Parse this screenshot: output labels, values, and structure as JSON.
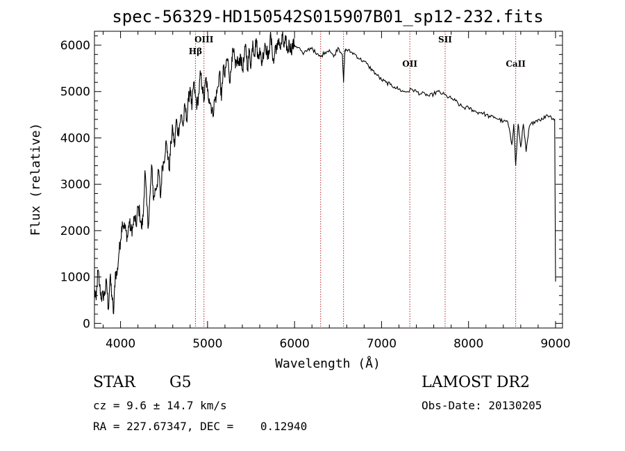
{
  "chart_data": {
    "type": "line",
    "title": "spec-56329-HD150542S015907B01_sp12-232.fits",
    "xlabel": "Wavelength (Å)",
    "ylabel": "Flux (relative)",
    "xlim": [
      3700,
      9080
    ],
    "ylim": [
      -100,
      6300
    ],
    "x_ticks": [
      4000,
      5000,
      6000,
      7000,
      8000,
      9000
    ],
    "y_ticks": [
      0,
      1000,
      2000,
      3000,
      4000,
      5000,
      6000
    ],
    "grid": false,
    "line_color": "#000000",
    "marker_color": "#b22222",
    "series": [
      {
        "x": [
          3700,
          3720,
          3740,
          3760,
          3780,
          3800,
          3820,
          3840,
          3860,
          3880,
          3900,
          3920,
          3940,
          3960,
          3980,
          4000,
          4020,
          4040,
          4060,
          4080,
          4100,
          4120,
          4140,
          4160,
          4180,
          4200,
          4220,
          4240,
          4260,
          4280,
          4300,
          4320,
          4340,
          4360,
          4380,
          4400,
          4420,
          4440,
          4460,
          4480,
          4500,
          4520,
          4540,
          4560,
          4580,
          4600,
          4620,
          4640,
          4660,
          4680,
          4700,
          4720,
          4740,
          4760,
          4780,
          4800,
          4820,
          4840,
          4860,
          4880,
          4900,
          4920,
          4940,
          4960,
          4980,
          5000,
          5020,
          5040,
          5060,
          5080,
          5100,
          5120,
          5140,
          5160,
          5180,
          5200,
          5220,
          5240,
          5260,
          5280,
          5300,
          5320,
          5340,
          5360,
          5380,
          5400,
          5420,
          5440,
          5460,
          5480,
          5500,
          5520,
          5540,
          5560,
          5580,
          5600,
          5620,
          5640,
          5660,
          5680,
          5700,
          5720,
          5740,
          5760,
          5780,
          5800,
          5820,
          5840,
          5860,
          5880,
          5900,
          5920,
          5940,
          5960,
          5980,
          6000,
          6050,
          6100,
          6150,
          6200,
          6250,
          6300,
          6350,
          6400,
          6450,
          6500,
          6550,
          6563,
          6580,
          6600,
          6650,
          6700,
          6750,
          6800,
          6850,
          6900,
          6950,
          7000,
          7050,
          7100,
          7150,
          7200,
          7250,
          7300,
          7350,
          7400,
          7450,
          7500,
          7550,
          7600,
          7650,
          7700,
          7750,
          7800,
          7850,
          7900,
          7950,
          8000,
          8050,
          8100,
          8150,
          8200,
          8250,
          8300,
          8350,
          8400,
          8450,
          8498,
          8520,
          8542,
          8570,
          8600,
          8630,
          8662,
          8700,
          8750,
          8800,
          8850,
          8900,
          8950,
          8990,
          9000
        ],
        "y": [
          700,
          500,
          1150,
          800,
          550,
          600,
          650,
          900,
          300,
          1000,
          600,
          200,
          1100,
          1050,
          1500,
          1800,
          2200,
          2100,
          2000,
          1850,
          2200,
          2000,
          2050,
          2300,
          2100,
          2500,
          2400,
          2050,
          2300,
          3300,
          2600,
          2100,
          2800,
          3400,
          2650,
          2900,
          3000,
          3300,
          2700,
          3400,
          3500,
          3900,
          3700,
          3300,
          3900,
          4200,
          3800,
          4400,
          4100,
          4300,
          4500,
          4250,
          4700,
          4400,
          4800,
          5100,
          4600,
          5200,
          4900,
          4700,
          4950,
          5400,
          5100,
          4800,
          5300,
          5000,
          4850,
          4700,
          4500,
          4800,
          4900,
          5100,
          5450,
          4800,
          5550,
          5300,
          5700,
          5600,
          5200,
          5750,
          5850,
          5500,
          5700,
          5550,
          5800,
          5450,
          5700,
          6000,
          5500,
          5900,
          5550,
          6100,
          5800,
          6150,
          5700,
          5950,
          5600,
          5800,
          6050,
          5900,
          5700,
          6200,
          5950,
          5600,
          6000,
          5900,
          6150,
          5900,
          6200,
          5950,
          6100,
          5850,
          6050,
          5900,
          6000,
          6000,
          5950,
          5800,
          5900,
          5950,
          5800,
          5750,
          5850,
          5900,
          5750,
          5950,
          5800,
          5200,
          5900,
          5900,
          5850,
          5800,
          5700,
          5650,
          5550,
          5450,
          5350,
          5250,
          5200,
          5150,
          5100,
          5050,
          5000,
          5000,
          5050,
          5000,
          4950,
          4950,
          4900,
          4950,
          5000,
          4950,
          4900,
          4850,
          4800,
          4700,
          4650,
          4650,
          4600,
          4550,
          4550,
          4500,
          4450,
          4450,
          4400,
          4350,
          4350,
          3850,
          4300,
          3400,
          4300,
          3800,
          4300,
          3700,
          4250,
          4350,
          4400,
          4400,
          4500,
          4450,
          4400,
          900
        ]
      }
    ],
    "spectral_lines": [
      {
        "label": "Hβ",
        "x": 4861,
        "label_level": "lower"
      },
      {
        "label": "OIII",
        "x": 4959,
        "label_level": "upper"
      },
      {
        "label": "",
        "x": 6300,
        "label_level": "none"
      },
      {
        "label": "",
        "x": 6563,
        "label_level": "none"
      },
      {
        "label": "OII",
        "x": 7325,
        "label_level": "lower"
      },
      {
        "label": "SII",
        "x": 7731,
        "label_level": "upper"
      },
      {
        "label": "CaII",
        "x": 8542,
        "label_level": "lower"
      }
    ]
  },
  "info": {
    "object_class": "STAR",
    "subclass": "G5",
    "survey": "LAMOST DR2",
    "redshift": "cz = 9.6 ± 14.7 km/s",
    "obs_date": "Obs-Date: 20130205",
    "coords": "RA = 227.67347, DEC =    0.12940"
  }
}
